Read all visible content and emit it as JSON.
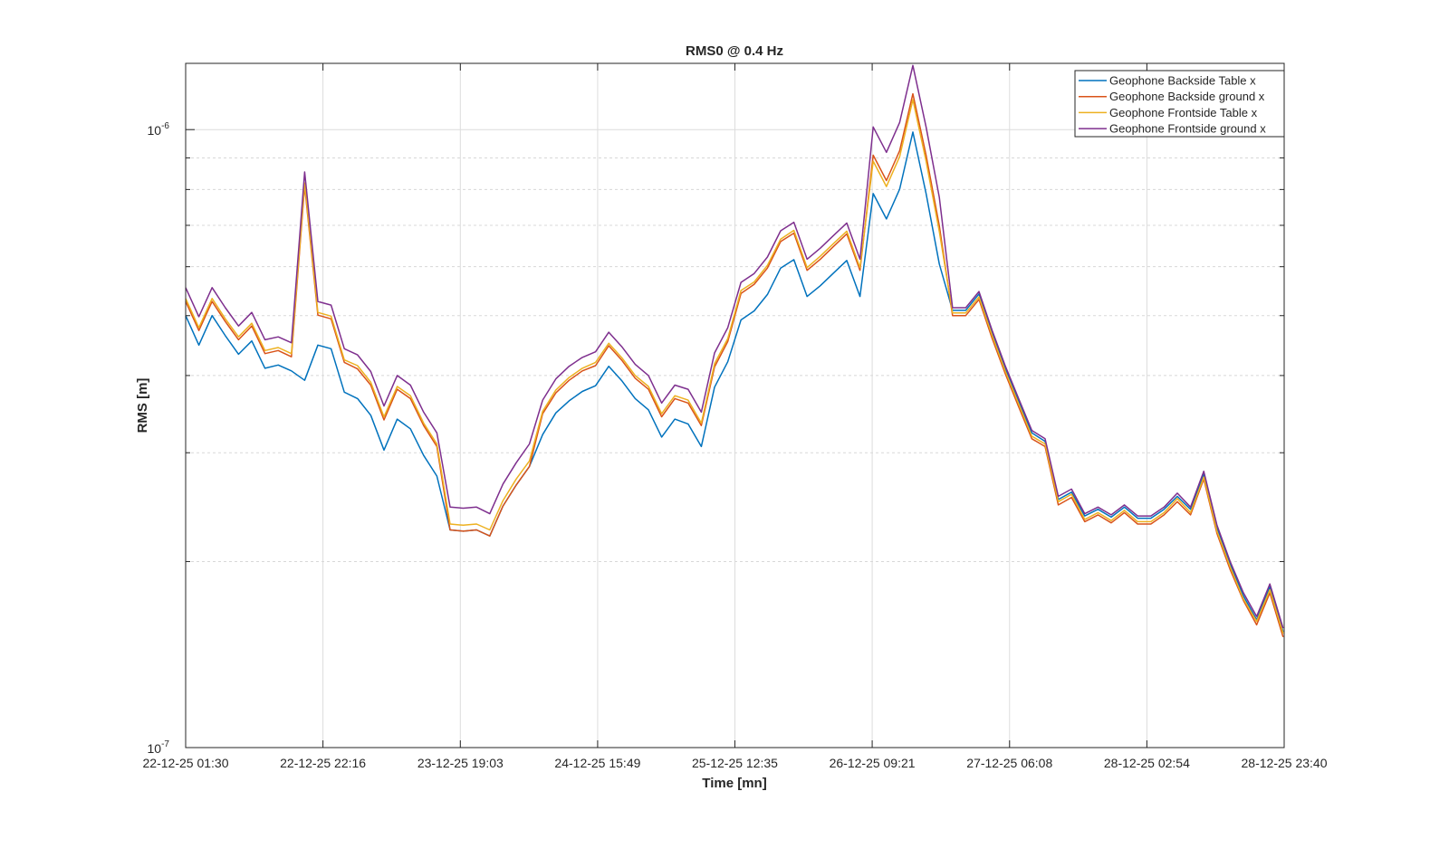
{
  "chart_data": {
    "type": "line",
    "title": "RMS0 @ 0.4 Hz",
    "xlabel": "Time [mn]",
    "ylabel": "RMS [m]",
    "yscale": "log",
    "ylim": [
      1e-07,
      1.28e-06
    ],
    "xlim_hours": [
      0,
      166.17
    ],
    "x_start_hours": 0,
    "x_step_hours": 2,
    "value_multiplier": 1e-07,
    "grid": true,
    "legend_position": "top-right",
    "xticks": [
      {
        "hours": 0,
        "label": "22-12-25 01:30"
      },
      {
        "hours": 20.77,
        "label": "22-12-25 22:16"
      },
      {
        "hours": 41.55,
        "label": "23-12-25 19:03"
      },
      {
        "hours": 62.32,
        "label": "24-12-25 15:49"
      },
      {
        "hours": 83.08,
        "label": "25-12-25 12:35"
      },
      {
        "hours": 103.85,
        "label": "26-12-25 09:21"
      },
      {
        "hours": 124.63,
        "label": "27-12-25 06:08"
      },
      {
        "hours": 145.4,
        "label": "28-12-25 02:54"
      },
      {
        "hours": 166.17,
        "label": "28-12-25 23:40"
      }
    ],
    "yticks": [
      {
        "value": 1e-07,
        "base": "10",
        "exp": "-7"
      },
      {
        "value": 1e-06,
        "base": "10",
        "exp": "-6"
      }
    ],
    "series": [
      {
        "name": "Geophone Backside Table x",
        "color": "#0072BD",
        "values": [
          5.0,
          4.48,
          5.0,
          4.64,
          4.33,
          4.55,
          4.11,
          4.16,
          4.07,
          3.93,
          4.48,
          4.42,
          3.76,
          3.67,
          3.45,
          3.03,
          3.4,
          3.28,
          2.97,
          2.75,
          2.25,
          2.24,
          2.25,
          2.2,
          2.46,
          2.66,
          2.85,
          3.21,
          3.48,
          3.64,
          3.77,
          3.85,
          4.14,
          3.92,
          3.67,
          3.52,
          3.18,
          3.4,
          3.34,
          3.07,
          3.83,
          4.21,
          4.92,
          5.09,
          5.41,
          5.97,
          6.16,
          5.37,
          5.59,
          5.86,
          6.14,
          5.37,
          7.88,
          7.17,
          8.01,
          9.91,
          7.88,
          6.06,
          5.1,
          5.1,
          5.42,
          4.68,
          4.1,
          3.63,
          3.23,
          3.13,
          2.52,
          2.59,
          2.37,
          2.43,
          2.36,
          2.45,
          2.35,
          2.35,
          2.43,
          2.55,
          2.43,
          2.77,
          2.27,
          1.98,
          1.76,
          1.61,
          1.82,
          1.54
        ]
      },
      {
        "name": "Geophone Backside ground x",
        "color": "#D95319",
        "values": [
          5.27,
          4.73,
          5.27,
          4.89,
          4.57,
          4.81,
          4.34,
          4.39,
          4.29,
          8.11,
          5.01,
          4.94,
          4.2,
          4.1,
          3.86,
          3.39,
          3.8,
          3.67,
          3.32,
          3.07,
          2.25,
          2.24,
          2.25,
          2.2,
          2.46,
          2.66,
          2.85,
          3.47,
          3.75,
          3.93,
          4.07,
          4.15,
          4.47,
          4.23,
          3.96,
          3.8,
          3.43,
          3.67,
          3.61,
          3.32,
          4.13,
          4.54,
          5.43,
          5.62,
          5.97,
          6.59,
          6.8,
          5.92,
          6.17,
          6.47,
          6.78,
          5.92,
          9.09,
          8.27,
          9.24,
          11.43,
          9.09,
          6.99,
          5.0,
          5.0,
          5.31,
          4.59,
          4.02,
          3.56,
          3.16,
          3.07,
          2.47,
          2.54,
          2.32,
          2.38,
          2.31,
          2.4,
          2.3,
          2.3,
          2.38,
          2.5,
          2.38,
          2.72,
          2.22,
          1.94,
          1.73,
          1.58,
          1.78,
          1.51
        ]
      },
      {
        "name": "Geophone Frontside Table x",
        "color": "#EDB120",
        "values": [
          5.33,
          4.78,
          5.33,
          4.94,
          4.62,
          4.86,
          4.39,
          4.44,
          4.34,
          8.2,
          5.06,
          4.99,
          4.24,
          4.15,
          3.9,
          3.43,
          3.84,
          3.71,
          3.35,
          3.1,
          2.3,
          2.29,
          2.3,
          2.25,
          2.51,
          2.72,
          2.91,
          3.5,
          3.79,
          3.97,
          4.11,
          4.2,
          4.51,
          4.27,
          4.0,
          3.84,
          3.47,
          3.71,
          3.65,
          3.35,
          4.18,
          4.59,
          5.49,
          5.67,
          6.03,
          6.65,
          6.87,
          5.98,
          6.24,
          6.54,
          6.85,
          5.98,
          8.89,
          8.09,
          9.04,
          11.18,
          8.89,
          6.84,
          5.05,
          5.05,
          5.36,
          4.64,
          4.06,
          3.6,
          3.19,
          3.1,
          2.5,
          2.57,
          2.34,
          2.4,
          2.33,
          2.42,
          2.32,
          2.32,
          2.4,
          2.53,
          2.4,
          2.74,
          2.24,
          1.96,
          1.74,
          1.6,
          1.8,
          1.53
        ]
      },
      {
        "name": "Geophone Frontside ground x",
        "color": "#7E2F8E",
        "values": [
          5.55,
          4.98,
          5.55,
          5.15,
          4.81,
          5.06,
          4.57,
          4.62,
          4.52,
          8.54,
          5.27,
          5.2,
          4.42,
          4.32,
          4.06,
          3.57,
          4.0,
          3.86,
          3.49,
          3.23,
          2.45,
          2.44,
          2.45,
          2.39,
          2.67,
          2.89,
          3.1,
          3.65,
          3.95,
          4.14,
          4.28,
          4.37,
          4.7,
          4.45,
          4.17,
          4.0,
          3.61,
          3.86,
          3.8,
          3.49,
          4.35,
          4.78,
          5.66,
          5.85,
          6.22,
          6.86,
          7.08,
          6.17,
          6.43,
          6.74,
          7.06,
          6.17,
          10.1,
          9.19,
          10.27,
          12.7,
          10.1,
          7.77,
          5.15,
          5.15,
          5.47,
          4.73,
          4.14,
          3.67,
          3.26,
          3.16,
          2.55,
          2.62,
          2.39,
          2.45,
          2.38,
          2.47,
          2.37,
          2.37,
          2.45,
          2.58,
          2.45,
          2.8,
          2.29,
          2.0,
          1.78,
          1.63,
          1.84,
          1.56
        ]
      }
    ]
  }
}
